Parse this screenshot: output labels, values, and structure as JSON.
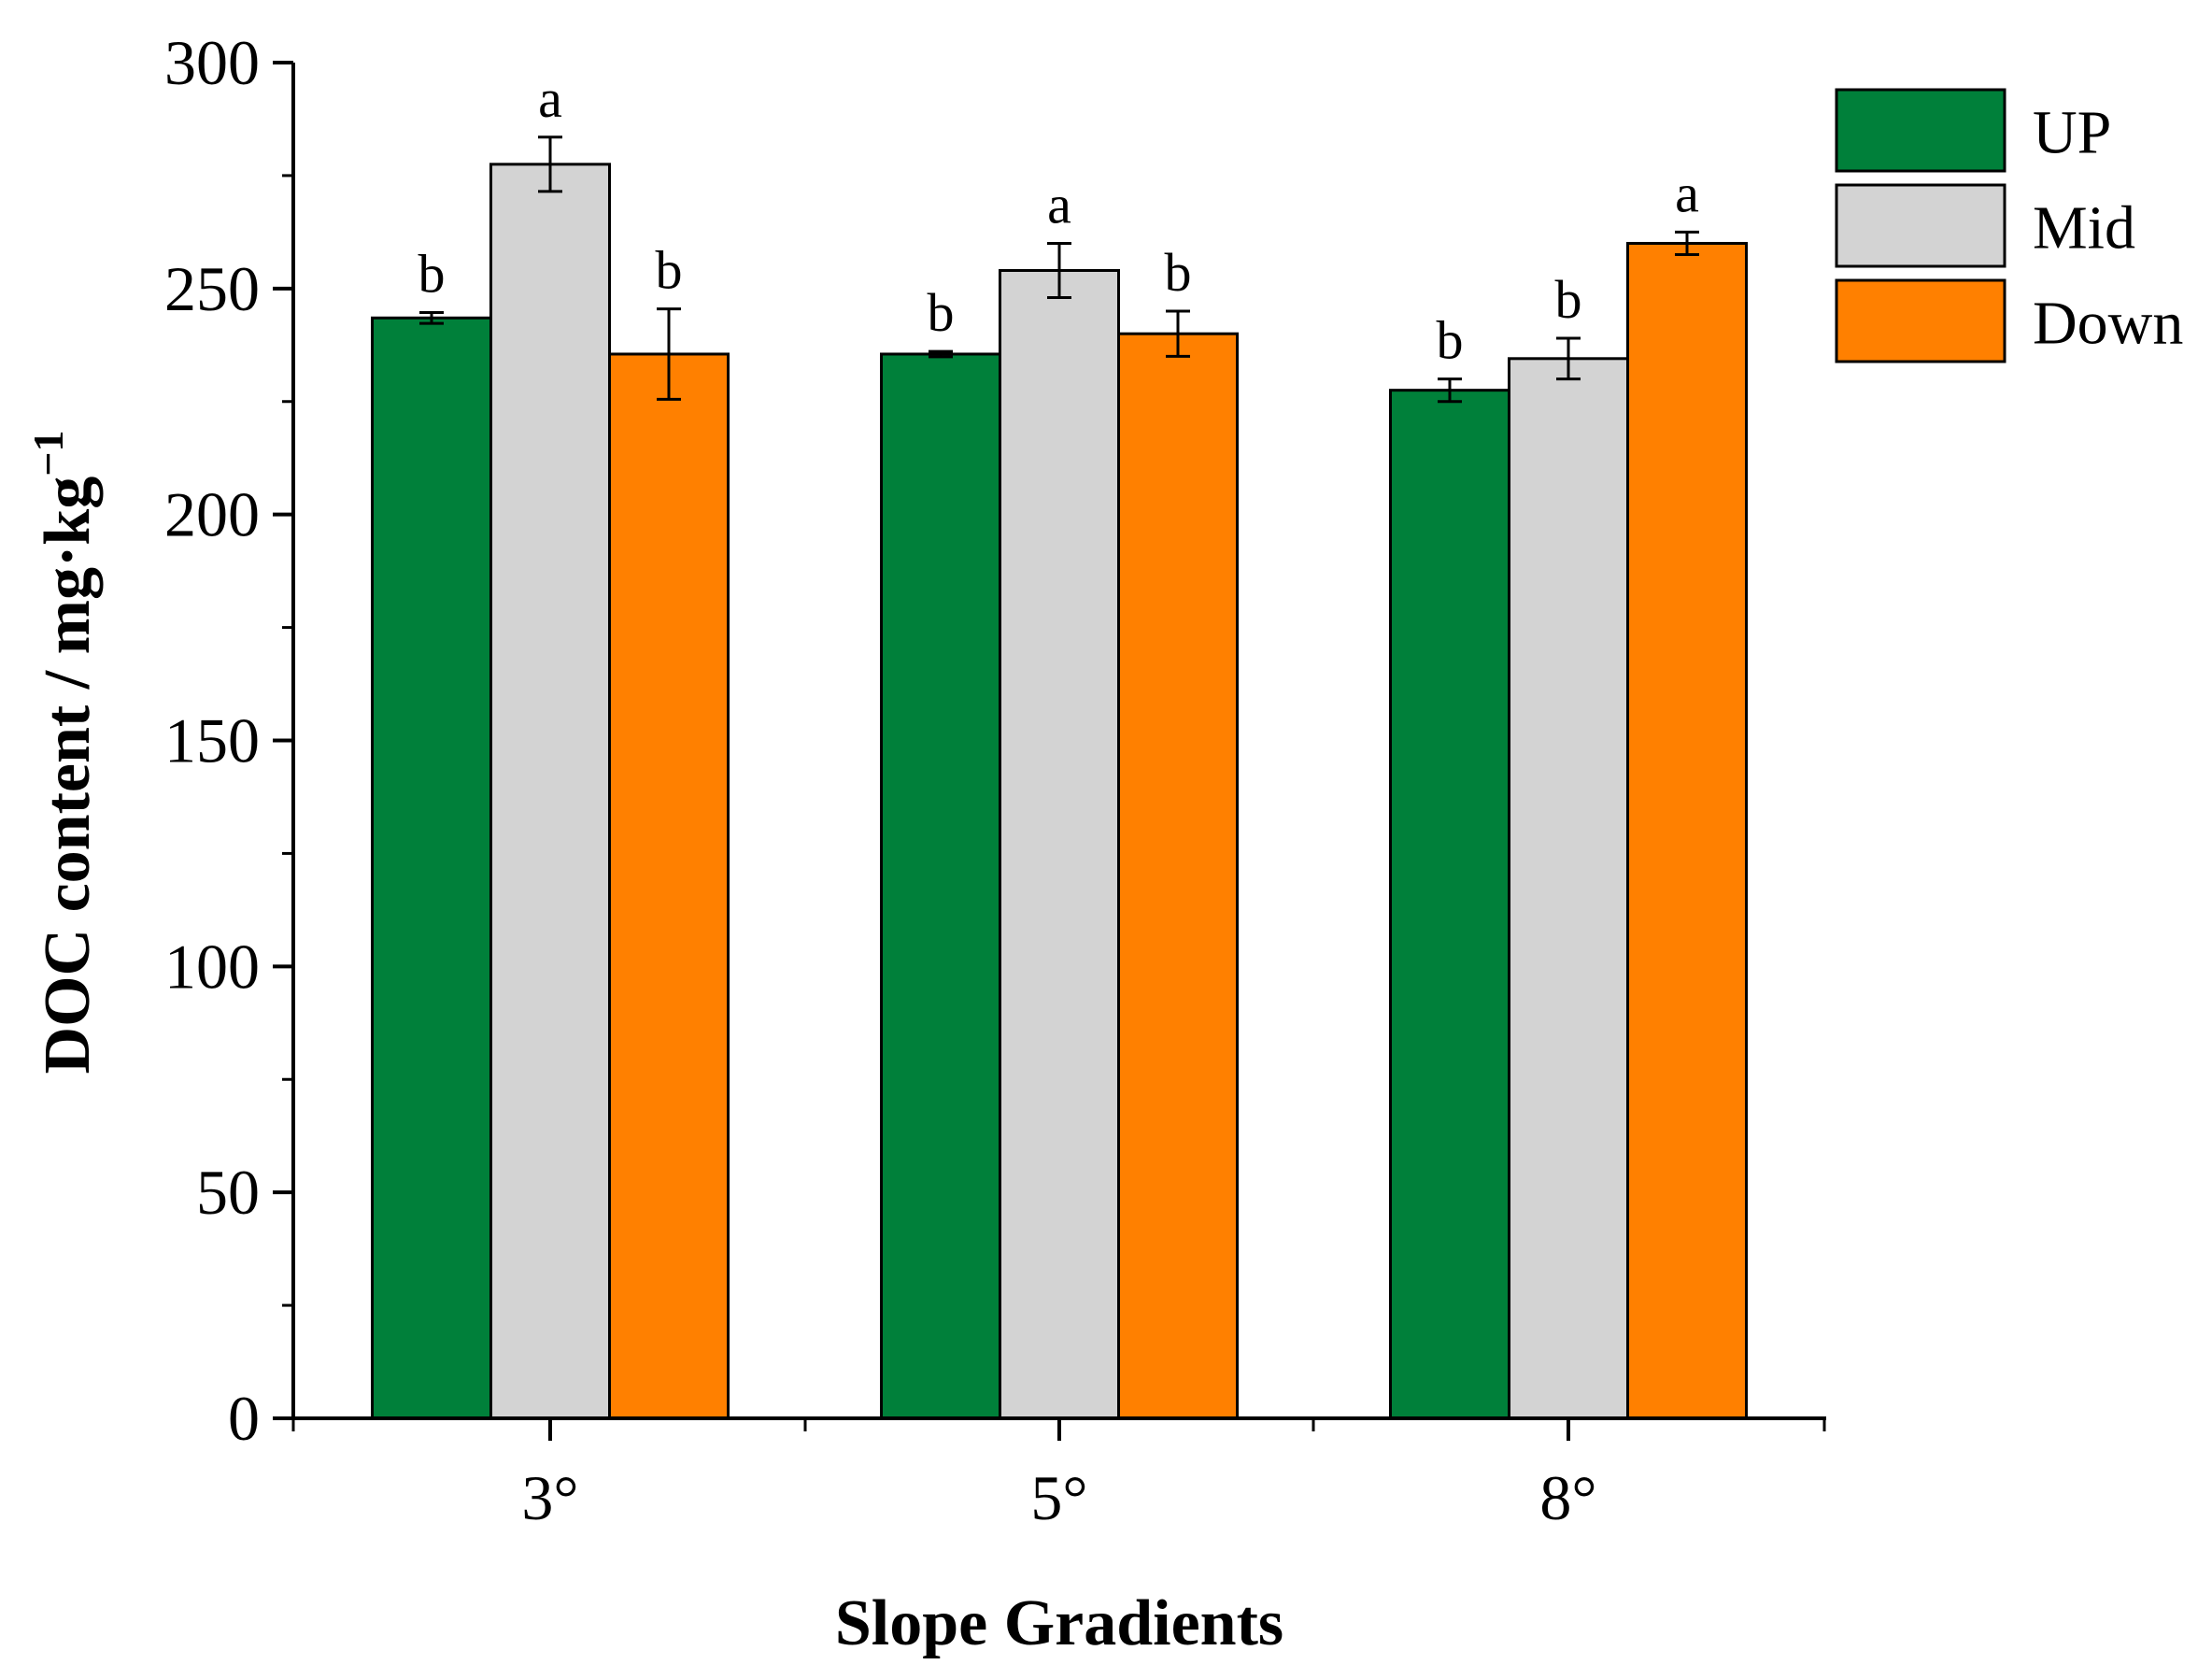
{
  "chart_data": {
    "type": "bar",
    "title": "",
    "xlabel": "Slope Gradients",
    "ylabel_main": "DOC content / mg·kg",
    "ylabel_sup": "−1",
    "categories": [
      "3°",
      "5°",
      "8°"
    ],
    "ylim": [
      0,
      300
    ],
    "yticks": [
      "0",
      "50",
      "100",
      "150",
      "200",
      "250",
      "300"
    ],
    "ytick_values": [
      0,
      50,
      100,
      150,
      200,
      250,
      300
    ],
    "legend_position": "top-right",
    "series": [
      {
        "name": "UP",
        "color": "#00803a",
        "values": [
          243.5,
          235.5,
          227.5
        ],
        "errors": [
          1.2,
          0.6,
          2.5
        ],
        "labels": [
          "b",
          "b",
          "b"
        ]
      },
      {
        "name": "Mid",
        "color": "#d3d3d3",
        "values": [
          277.5,
          254,
          234.5
        ],
        "errors": [
          6,
          6,
          4.5
        ],
        "labels": [
          "a",
          "a",
          "b"
        ]
      },
      {
        "name": "Down",
        "color": "#ff8000",
        "values": [
          235.5,
          240,
          260
        ],
        "errors": [
          10,
          5,
          2.5
        ],
        "labels": [
          "b",
          "b",
          "a"
        ]
      }
    ]
  }
}
